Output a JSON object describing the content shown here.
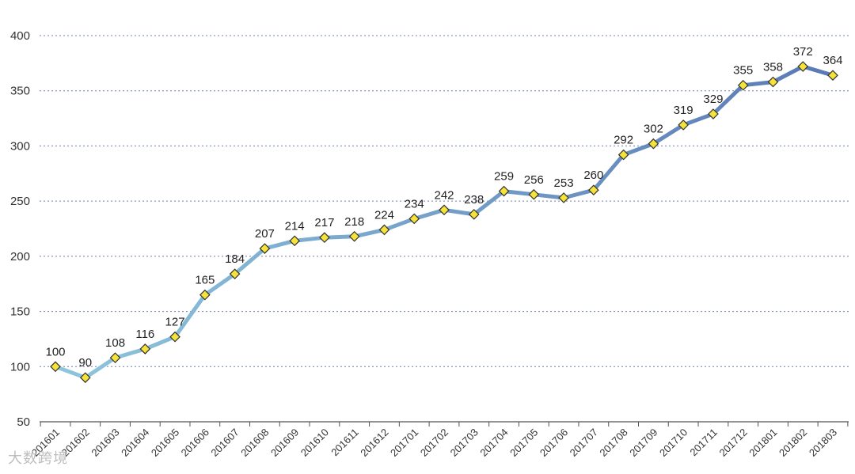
{
  "watermark": "大数跨境",
  "colors": {
    "line_start": "#8ec6dd",
    "line_end": "#5a79b5",
    "marker_fill": "#f5e33a",
    "marker_stroke": "#333333",
    "grid": "#6f7fb3",
    "axis": "#555555"
  },
  "chart_data": {
    "type": "line",
    "title": "",
    "xlabel": "",
    "ylabel": "",
    "ylim": [
      50,
      400
    ],
    "yticks": [
      50,
      100,
      150,
      200,
      250,
      300,
      350,
      400
    ],
    "grid": true,
    "categories": [
      "201601",
      "201602",
      "201603",
      "201604",
      "201605",
      "201606",
      "201607",
      "201608",
      "201609",
      "201610",
      "201611",
      "201612",
      "201701",
      "201702",
      "201703",
      "201704",
      "201705",
      "201706",
      "201707",
      "201708",
      "201709",
      "201710",
      "201711",
      "201712",
      "201801",
      "201802",
      "201803"
    ],
    "series": [
      {
        "values": [
          100,
          90,
          108,
          116,
          127,
          165,
          184,
          207,
          214,
          217,
          218,
          224,
          234,
          242,
          238,
          259,
          256,
          253,
          260,
          292,
          302,
          319,
          329,
          355,
          358,
          372,
          364
        ]
      }
    ]
  }
}
